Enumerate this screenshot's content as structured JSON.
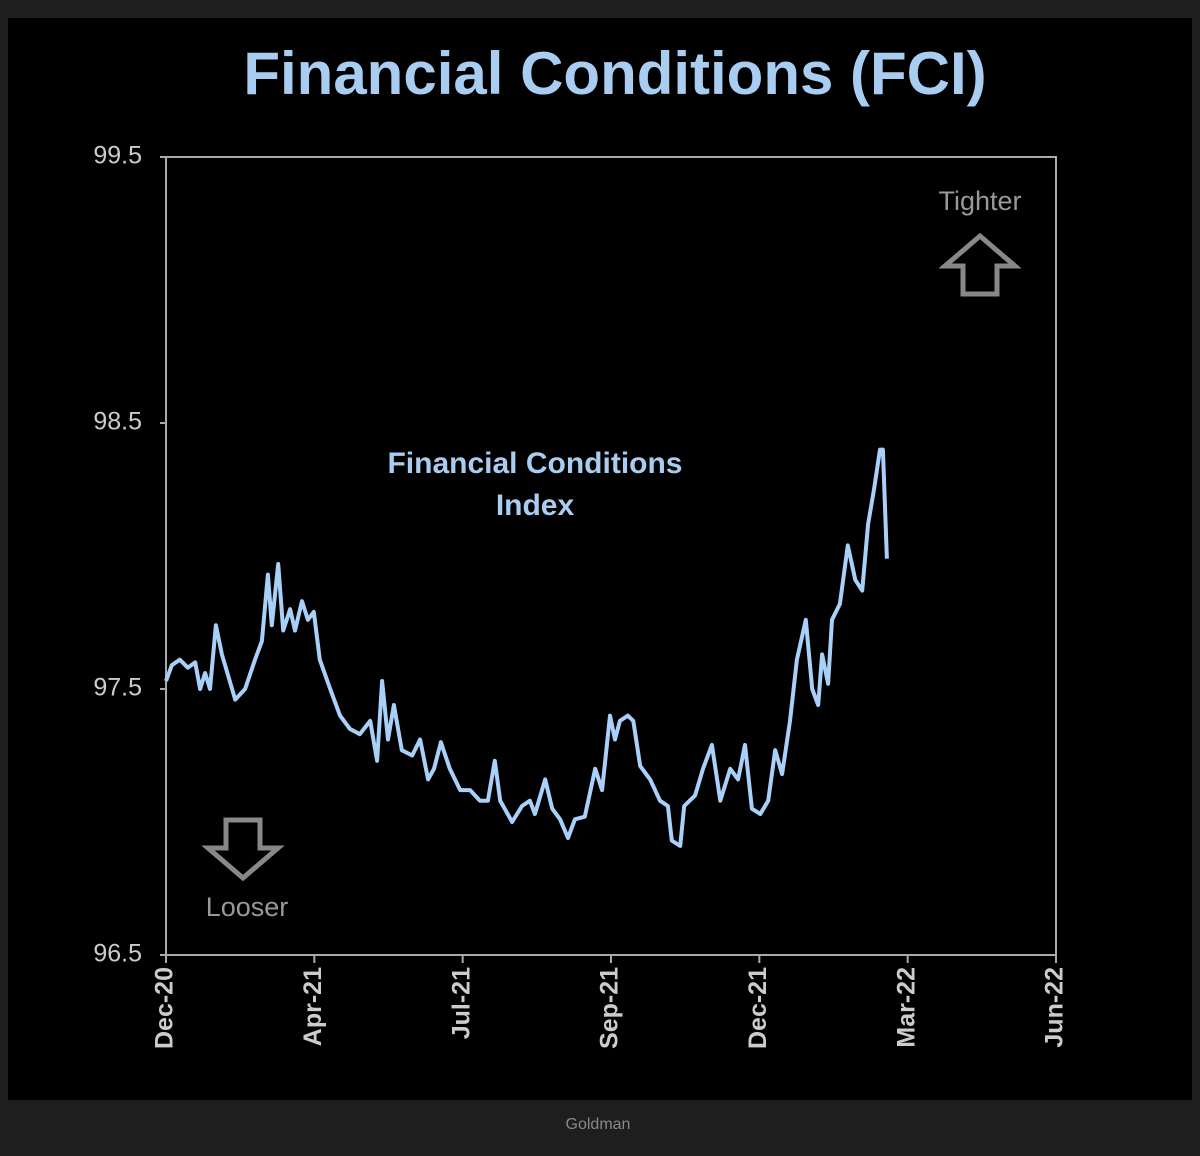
{
  "chart_data": {
    "type": "line",
    "title": "Financial Conditions (FCI)",
    "annotations": [
      "Financial Conditions",
      "Index",
      "Tighter",
      "Looser"
    ],
    "caption": "Goldman",
    "x": [
      0,
      0.12,
      0.28,
      0.44,
      0.59,
      0.69,
      0.79,
      0.89,
      1.01,
      1.13,
      1.4,
      1.6,
      1.8,
      1.94,
      2.06,
      2.14,
      2.27,
      2.37,
      2.51,
      2.61,
      2.75,
      2.87,
      2.99,
      3.11,
      3.32,
      3.52,
      3.72,
      3.92,
      4.13,
      4.27,
      4.37,
      4.49,
      4.61,
      4.77,
      4.98,
      5.14,
      5.3,
      5.42,
      5.56,
      5.74,
      5.95,
      6.15,
      6.35,
      6.51,
      6.65,
      6.76,
      7.0,
      7.2,
      7.36,
      7.46,
      7.67,
      7.81,
      7.97,
      8.13,
      8.27,
      8.47,
      8.68,
      8.82,
      8.98,
      9.08,
      9.18,
      9.34,
      9.45,
      9.59,
      9.79,
      9.99,
      10.15,
      10.23,
      10.4,
      10.48,
      10.7,
      10.86,
      11.04,
      11.21,
      11.41,
      11.57,
      11.71,
      11.85,
      12.02,
      12.18,
      12.32,
      12.46,
      12.62,
      12.76,
      12.94,
      13.07,
      13.19,
      13.27,
      13.39,
      13.47,
      13.63,
      13.79,
      13.94,
      14.08,
      14.2,
      14.32,
      14.44,
      14.5,
      14.58
    ],
    "series": [
      {
        "color": "#a8d0f8",
        "values": [
          97.53,
          97.59,
          97.61,
          97.58,
          97.6,
          97.5,
          97.56,
          97.5,
          97.74,
          97.63,
          97.46,
          97.5,
          97.61,
          97.68,
          97.93,
          97.74,
          97.97,
          97.72,
          97.8,
          97.72,
          97.83,
          97.76,
          97.79,
          97.61,
          97.5,
          97.4,
          97.35,
          97.33,
          97.38,
          97.23,
          97.53,
          97.31,
          97.44,
          97.27,
          97.25,
          97.31,
          97.16,
          97.2,
          97.3,
          97.2,
          97.12,
          97.12,
          97.08,
          97.08,
          97.23,
          97.08,
          97.0,
          97.06,
          97.08,
          97.03,
          97.16,
          97.05,
          97.01,
          96.94,
          97.01,
          97.02,
          97.2,
          97.12,
          97.4,
          97.31,
          97.38,
          97.4,
          97.38,
          97.21,
          97.16,
          97.08,
          97.06,
          96.93,
          96.91,
          97.06,
          97.1,
          97.2,
          97.29,
          97.08,
          97.2,
          97.16,
          97.29,
          97.05,
          97.03,
          97.08,
          97.27,
          97.18,
          97.38,
          97.61,
          97.76,
          97.5,
          97.44,
          97.63,
          97.52,
          97.76,
          97.82,
          98.04,
          97.91,
          97.87,
          98.12,
          98.25,
          98.4,
          98.4,
          97.99
        ]
      }
    ],
    "xlim": [
      0,
      18
    ],
    "xticks": [
      {
        "value": 0,
        "label": "Dec-20"
      },
      {
        "value": 3,
        "label": "Apr-21"
      },
      {
        "value": 6,
        "label": "Jul-21"
      },
      {
        "value": 9,
        "label": "Sep-21"
      },
      {
        "value": 12,
        "label": "Dec-21"
      },
      {
        "value": 15,
        "label": "Mar-22"
      },
      {
        "value": 18,
        "label": "Jun-22"
      }
    ],
    "ylim": [
      96.5,
      99.5
    ],
    "yticks": [
      96.5,
      97.5,
      98.5,
      99.5
    ]
  }
}
